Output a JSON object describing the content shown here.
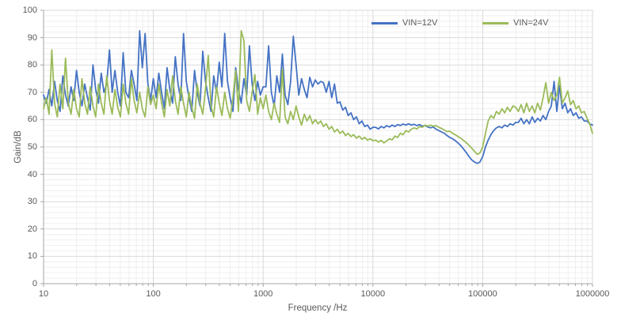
{
  "chart_data": {
    "type": "line",
    "title": "",
    "xlabel": "Frequency /Hz",
    "ylabel": "Gain/dB",
    "x_scale": "log10",
    "xlim_log10": [
      1,
      6
    ],
    "x_ticks": [
      "10",
      "100",
      "1000",
      "10000",
      "100000",
      "1000000"
    ],
    "ylim": [
      0,
      100
    ],
    "y_tick_step": 10,
    "y_minor_step": 2,
    "y_ticks": [
      "0",
      "10",
      "20",
      "30",
      "40",
      "50",
      "60",
      "70",
      "80",
      "90",
      "100"
    ],
    "grid": "major and minor, both axes",
    "legend_position": "inside top right, horizontal",
    "colors": {
      "series_vin12": "#4472c4",
      "series_vin24": "#9bbb59",
      "grid_major": "#d9d9d9",
      "grid_minor": "#efefef",
      "axis_line": "#a6a6a6",
      "text": "#595959"
    },
    "series": [
      {
        "name": "VIN=12V",
        "color": "#4472c4",
        "x_log10_start": 1,
        "x_log10_step": 0.025,
        "gain_db": [
          69,
          66,
          71,
          65,
          74,
          67,
          63,
          76,
          69,
          65,
          72,
          67,
          78,
          70,
          65,
          73,
          68,
          63.5,
          80,
          71,
          66,
          77,
          70,
          73,
          85.5,
          70,
          78,
          70,
          65,
          84.5,
          70,
          68,
          78,
          73,
          67,
          92.5,
          79,
          91.5,
          73,
          67,
          75,
          68,
          77,
          70,
          64,
          79,
          71,
          66,
          83,
          73,
          67,
          91.5,
          74,
          68,
          63,
          78,
          70,
          65,
          85,
          74,
          68,
          63,
          76,
          70,
          81,
          72,
          91.5,
          74,
          68,
          63,
          79,
          71,
          66,
          75,
          69,
          87,
          73,
          67,
          74,
          69,
          72,
          72,
          87,
          70,
          65,
          76,
          70,
          84,
          69,
          65.5,
          74,
          90.5,
          80,
          69,
          75,
          71,
          68,
          75.5,
          72,
          74.5,
          73,
          74,
          73.5,
          70,
          74,
          68,
          73,
          66,
          66.5,
          63.5,
          64.5,
          61.5,
          62.5,
          60,
          61,
          58.5,
          59.5,
          57.5,
          58,
          56.5,
          57.2,
          57.2,
          56.6,
          57.5,
          57,
          57.8,
          57.3,
          58,
          57.5,
          58.2,
          57.8,
          58.4,
          58,
          58.5,
          58,
          58.3,
          57.8,
          58.2,
          57.6,
          57.9,
          57.3,
          57,
          57.3,
          56.5,
          56,
          55.5,
          55,
          54.2,
          53.5,
          53,
          52.3,
          51.5,
          50.5,
          49.3,
          48,
          46.5,
          45.3,
          44.5,
          44,
          44.5,
          46.5,
          50,
          52.5,
          54.5,
          56,
          57,
          57.5,
          57,
          58,
          57.5,
          58.5,
          58,
          59,
          59,
          60.5,
          58.5,
          60,
          58.5,
          61,
          59,
          60.5,
          59.5,
          61.5,
          60,
          63,
          65,
          74,
          63,
          72.5,
          64,
          66,
          62.5,
          64,
          61.5,
          62.5,
          60.5,
          61,
          59.5,
          59.5,
          58.5,
          58
        ]
      },
      {
        "name": "VIN=24V",
        "color": "#9bbb59",
        "x_log10_start": 1,
        "x_log10_step": 0.025,
        "gain_db": [
          64,
          68,
          62,
          85.5,
          66,
          61,
          73,
          64,
          82.5,
          66,
          62,
          71,
          64,
          61,
          75,
          66,
          62,
          72,
          65,
          61,
          73,
          66,
          62,
          76,
          67,
          62,
          71,
          64.5,
          61,
          73,
          66,
          62,
          75,
          67,
          62.5,
          70,
          64,
          61,
          72,
          65.5,
          69,
          64,
          73,
          66,
          61,
          71,
          65,
          76,
          67,
          62,
          72,
          66,
          61,
          70,
          64.5,
          60.5,
          73,
          66,
          62,
          71,
          83.5,
          65,
          61,
          72,
          66,
          61.5,
          70,
          64,
          60.5,
          68,
          78,
          63,
          92.5,
          89,
          67,
          63,
          70,
          76.5,
          62,
          68,
          64,
          69,
          63,
          60,
          66,
          62,
          59,
          78.5,
          61,
          58.5,
          63,
          60,
          65,
          61,
          58,
          62,
          59.5,
          61.5,
          58.5,
          60,
          58.5,
          59.5,
          57.5,
          58.5,
          56.5,
          57.5,
          55.5,
          56.5,
          55,
          55.8,
          54.2,
          55,
          53.8,
          54.5,
          53.2,
          54,
          52.8,
          53.5,
          52.5,
          53,
          52.3,
          52.5,
          51.8,
          52.4,
          51.5,
          52.2,
          53,
          52.6,
          54,
          53.5,
          55,
          54.5,
          56,
          55.5,
          56.5,
          57,
          56.6,
          57.5,
          57.2,
          58,
          57.6,
          58,
          57.6,
          57.8,
          57.2,
          56.8,
          56.2,
          55.6,
          55.8,
          55,
          54.5,
          53.8,
          53.2,
          52.4,
          51.6,
          50.6,
          49.6,
          48.4,
          47.3,
          47.8,
          50,
          55,
          59.5,
          61.5,
          60.5,
          63,
          62,
          64,
          62.5,
          64.5,
          63,
          65,
          64.5,
          63,
          65.5,
          62.5,
          66,
          63,
          65,
          62.5,
          66,
          63.5,
          68,
          73.5,
          66,
          70,
          67,
          69,
          75.5,
          66,
          68,
          70.5,
          65.5,
          67,
          64,
          65,
          62.5,
          63,
          60.5,
          58.5,
          55
        ]
      }
    ]
  }
}
